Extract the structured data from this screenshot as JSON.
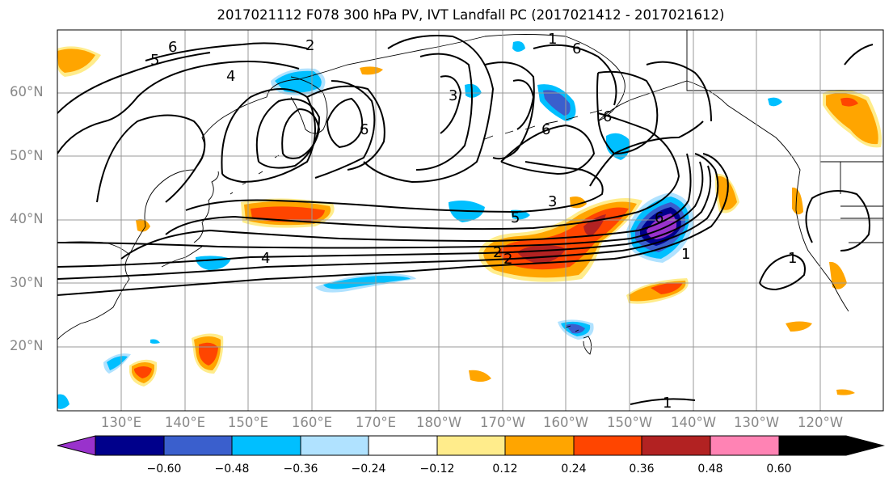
{
  "title": "2017021112 F078 300 hPa PV, IVT Landfall PC (2017021412 - 2017021612)",
  "lat_labels": [
    "60°N",
    "50°N",
    "40°N",
    "30°N",
    "20°N"
  ],
  "lon_labels": [
    "130°E",
    "140°E",
    "150°E",
    "160°E",
    "170°E",
    "180°W",
    "170°W",
    "160°W",
    "150°W",
    "140°W",
    "130°W",
    "120°W"
  ],
  "colorbar": {
    "ticks": [
      "−0.60",
      "−0.48",
      "−0.36",
      "−0.24",
      "−0.12",
      "0.12",
      "0.24",
      "0.36",
      "0.48",
      "0.60"
    ],
    "colors": [
      "#9932CC",
      "#00008B",
      "#3A5FCD",
      "#00BFFF",
      "#B0E2FF",
      "#FFFFFF",
      "#FFEC8B",
      "#FFA500",
      "#FF4500",
      "#B22222",
      "#FF83B4"
    ]
  },
  "contour_labels": [
    "6",
    "5",
    "4",
    "2",
    "1",
    "6",
    "3",
    "6",
    "6",
    "6",
    "3",
    "5",
    "6",
    "4",
    "2",
    "2",
    "1",
    "1",
    "1"
  ],
  "map_style": {
    "projection": "equirectangular",
    "extent": "120°E–110°W, 10°N–70°N",
    "grid": true,
    "contour_color": "#000000"
  }
}
